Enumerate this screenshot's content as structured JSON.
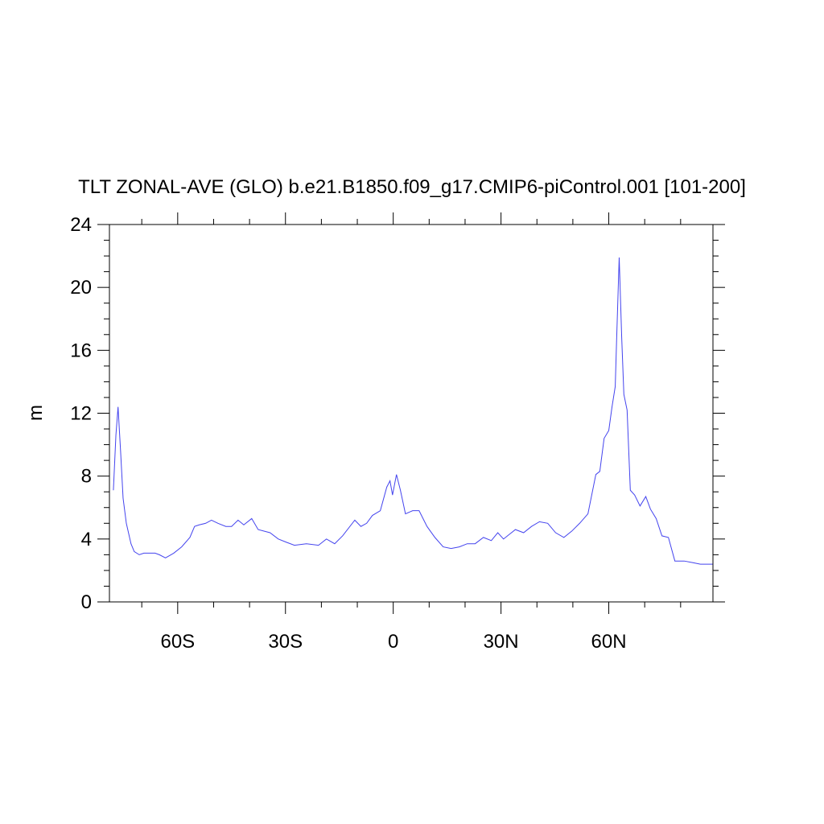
{
  "chart_data": {
    "type": "line",
    "title": "TLT ZONAL-AVE (GLO) b.e21.B1850.f09_g17.CMIP6-piControl.001 [101-200]",
    "y_label": "m",
    "xlim": [
      -79,
      89
    ],
    "ylim": [
      0,
      24
    ],
    "xticks": [
      {
        "value": -60,
        "label": "60S"
      },
      {
        "value": -30,
        "label": "30S"
      },
      0,
      {
        "value": 30,
        "label": "30N"
      },
      {
        "value": 60,
        "label": "60N"
      }
    ],
    "x_minor_ticks": [
      -70,
      -50,
      -40,
      -20,
      -10,
      10,
      20,
      40,
      50,
      70,
      80
    ],
    "yticks": [
      0,
      4,
      8,
      12,
      16,
      20,
      24
    ],
    "y_minor_ticks": [
      1,
      2,
      3,
      5,
      6,
      7,
      9,
      10,
      11,
      13,
      14,
      15,
      17,
      18,
      19,
      21,
      22,
      23
    ],
    "series": [
      {
        "name": "TLT",
        "color": "#4444ee",
        "x": [
          -77.9,
          -77.2,
          -76.6,
          -75.9,
          -75.2,
          -74.3,
          -73,
          -72.1,
          -70.7,
          -69.4,
          -67.8,
          -66.3,
          -65.1,
          -63.4,
          -61.1,
          -58.9,
          -56.6,
          -55.3,
          -54,
          -52.2,
          -50.6,
          -48.8,
          -46.6,
          -45,
          -43.2,
          -41.6,
          -39.4,
          -37.6,
          -34.3,
          -32,
          -29.8,
          -27.5,
          -24.2,
          -20.8,
          -18.6,
          -16.3,
          -14.1,
          -10.7,
          -9,
          -7.4,
          -5.8,
          -3.6,
          -1.8,
          -0.9,
          -0.2,
          0.9,
          2,
          3.4,
          5.4,
          7.2,
          9.4,
          11.6,
          13.9,
          16.1,
          18.4,
          20.6,
          22.8,
          25.1,
          27.3,
          29.1,
          30.7,
          34,
          36.3,
          38.5,
          40.7,
          43,
          45.2,
          47.5,
          49.7,
          51.9,
          54.2,
          56.4,
          57.5,
          58.7,
          60,
          60.9,
          61.8,
          62.2,
          62.9,
          63.6,
          64.2,
          65.1,
          66,
          67.2,
          68.7,
          70.3,
          71.6,
          73.2,
          74.8,
          76.6,
          78.4,
          81,
          83.3,
          85.5,
          88.9
        ],
        "values": [
          7.1,
          10.6,
          12.4,
          9.6,
          6.6,
          5.0,
          3.7,
          3.2,
          3.0,
          3.1,
          3.1,
          3.1,
          3.0,
          2.8,
          3.1,
          3.5,
          4.1,
          4.8,
          4.9,
          5.0,
          5.2,
          5.0,
          4.8,
          4.8,
          5.2,
          4.9,
          5.3,
          4.6,
          4.4,
          4.0,
          3.8,
          3.6,
          3.7,
          3.6,
          4.0,
          3.7,
          4.2,
          5.2,
          4.8,
          5.0,
          5.5,
          5.8,
          7.3,
          7.7,
          6.8,
          8.1,
          7.1,
          5.6,
          5.8,
          5.8,
          4.8,
          4.1,
          3.5,
          3.4,
          3.5,
          3.7,
          3.7,
          4.1,
          3.9,
          4.4,
          4.0,
          4.6,
          4.4,
          4.8,
          5.1,
          5.0,
          4.4,
          4.1,
          4.5,
          5.0,
          5.6,
          8.1,
          8.3,
          10.4,
          10.9,
          12.4,
          13.7,
          16.8,
          21.9,
          16.8,
          13.2,
          12.2,
          7.1,
          6.8,
          6.1,
          6.7,
          5.9,
          5.3,
          4.2,
          4.1,
          2.6,
          2.6,
          2.5,
          2.4,
          2.4
        ]
      }
    ]
  }
}
